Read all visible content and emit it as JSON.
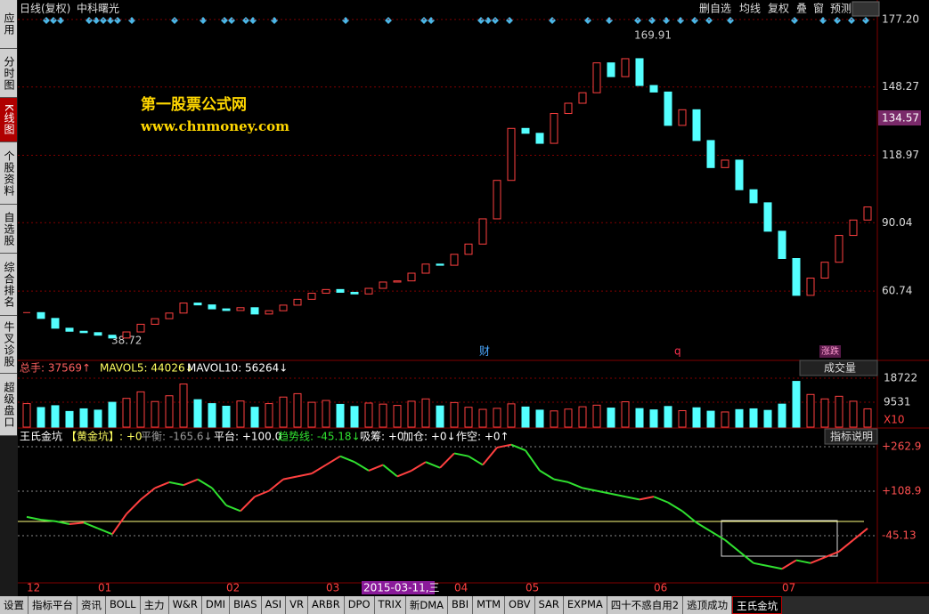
{
  "sidebar": [
    "应用",
    "分时图",
    "K线图",
    "个股资料",
    "自选股",
    "综合排名",
    "牛叉诊股",
    "超级盘口"
  ],
  "header": {
    "period": "日线(复权)",
    "stock": "中科曙光",
    "buttons": [
      "删自选",
      "均线",
      "复权",
      "叠",
      "窗",
      "预测"
    ]
  },
  "price_panel": {
    "watermark": "第一股票公式网",
    "url": "www.chnmoney.com",
    "current_price": "134.57",
    "high_label": "169.91",
    "low_label": "38.72",
    "markers": [
      "财",
      "q",
      "涨跌"
    ],
    "ylim": [
      31,
      178.7
    ],
    "yticks": [
      {
        "value": 177.2,
        "label": "177.20"
      },
      148.27,
      118.97,
      90.04,
      60.74
    ],
    "closes": [
      51.5,
      49.0,
      44.8,
      43.5,
      42.9,
      41.8,
      40.6,
      43.2,
      46.5,
      48.9,
      51.3,
      55.6,
      54.8,
      53.1,
      52.4,
      53.6,
      50.9,
      52.3,
      54.7,
      57.2,
      59.8,
      61.4,
      60.2,
      59.5,
      61.9,
      64.6,
      65.1,
      68.4,
      72.3,
      71.8,
      76.5,
      80.9,
      91.7,
      108.2,
      130.5,
      128.4,
      124.1,
      136.9,
      141.3,
      145.8,
      158.6,
      152.7,
      160.4,
      148.9,
      146.1,
      131.8,
      138.5,
      125.3,
      113.7,
      116.9,
      104.2,
      98.6,
      86.4,
      74.7,
      58.9,
      66.3,
      73.1,
      84.6,
      91.2,
      96.8
    ]
  },
  "volume_panel": {
    "legend": [
      "总手: 37569↑",
      "MAVOL5: 44026↓",
      "MAVOL10: 56264↓"
    ],
    "selector": "成交量",
    "unit": "X10",
    "ylim": [
      0,
      25530
    ],
    "yticks": [
      18722,
      9531
    ],
    "values": [
      9000,
      7500,
      8200,
      6000,
      7000,
      6500,
      9500,
      11000,
      13500,
      9800,
      12000,
      16500,
      10500,
      9000,
      8000,
      10000,
      7600,
      9000,
      11500,
      12800,
      9500,
      10200,
      8700,
      7900,
      9200,
      8800,
      8300,
      9900,
      10800,
      8100,
      9400,
      7600,
      6800,
      7200,
      8900,
      7700,
      6500,
      6200,
      6900,
      7800,
      8400,
      7300,
      9700,
      7100,
      6600,
      7900,
      6300,
      7400,
      6100,
      5800,
      6700,
      7000,
      6400,
      8800,
      17500,
      12500,
      10800,
      11800,
      9900,
      7000
    ]
  },
  "indicator_panel": {
    "legend": [
      "王氏金坑",
      "【黄金坑】: +0",
      "平衡: -165.6↓",
      "平台: +100.0",
      "趋势线: -45.18↓",
      "吸筹: +0",
      "加仓: +0↓",
      "作空: +0↑"
    ],
    "help": "指标说明",
    "ylim": [
      -208.4,
      324.5
    ],
    "yticks": [
      {
        "value": 262.9,
        "label": "+262.9"
      },
      {
        "value": 108.9,
        "label": "+108.9"
      },
      -45.13
    ],
    "trend": [
      20,
      10,
      5,
      -5,
      0,
      -20,
      -40,
      30,
      80,
      120,
      140,
      130,
      150,
      120,
      60,
      40,
      90,
      110,
      150,
      160,
      170,
      200,
      230,
      210,
      180,
      200,
      160,
      180,
      210,
      190,
      240,
      230,
      200,
      260,
      270,
      250,
      180,
      150,
      140,
      120,
      110,
      100,
      90,
      80,
      90,
      70,
      40,
      0,
      -30,
      -60,
      -100,
      -140,
      -150,
      -160,
      -130,
      -140,
      -120,
      -100,
      -60,
      -20
    ]
  },
  "dates": [
    "12",
    null,
    null,
    null,
    null,
    "01",
    null,
    null,
    null,
    null,
    null,
    null,
    null,
    null,
    "02",
    null,
    null,
    null,
    null,
    null,
    null,
    "03",
    null,
    null,
    null,
    null,
    "2015-03-11,三",
    null,
    null,
    null,
    "04",
    null,
    null,
    null,
    null,
    "05",
    null,
    null,
    null,
    null,
    null,
    null,
    null,
    null,
    "06",
    null,
    null,
    null,
    null,
    null,
    null,
    null,
    null,
    "07",
    null,
    null,
    null,
    null,
    null,
    null
  ],
  "bottom_tabs": [
    "设置",
    "指标平台",
    "资讯",
    "BOLL",
    "主力",
    "W&R",
    "DMI",
    "BIAS",
    "ASI",
    "VR",
    "ARBR",
    "DPO",
    "TRIX",
    "新DMA",
    "BBI",
    "MTM",
    "OBV",
    "SAR",
    "EXPMA",
    "四十不惑自用2",
    "逃顶成功",
    "王氏金坑"
  ]
}
